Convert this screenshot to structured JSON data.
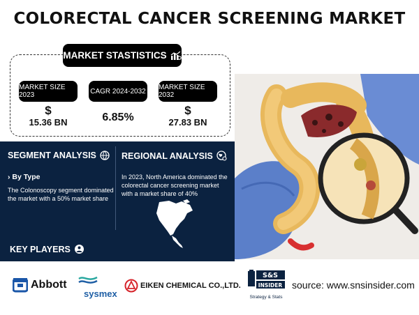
{
  "title": "COLORECTAL CANCER SCREENING MARKET",
  "market_stats": {
    "header": "MARKET STASTISTICS",
    "items": [
      {
        "label": "MARKET SIZE 2023",
        "symbol": "$",
        "value": "15.36 BN"
      },
      {
        "label": "CAGR 2024-2032",
        "symbol": "",
        "value": "6.85%"
      },
      {
        "label": "MARKET SIZE 2032",
        "symbol": "$",
        "value": "27.83 BN"
      }
    ]
  },
  "segment_analysis": {
    "heading": "SEGMENT ANALYSIS",
    "subheading": "› By Type",
    "text_line1": "The Colonoscopy segment dominated",
    "text_line2": "the market with a 50% market share"
  },
  "regional_analysis": {
    "heading": "REGIONAL ANALYSIS",
    "text_line1": "In 2023, North America dominated the",
    "text_line2": "colorectal cancer screening market",
    "text_line3": "with a market share of 40%"
  },
  "key_players": {
    "heading": "KEY PLAYERS",
    "players": [
      "Abbott",
      "sysmex",
      "EIKEN CHEMICAL CO.,LTD."
    ]
  },
  "brand": {
    "top": "S&S",
    "middle": "INSIDER",
    "bottom": "Strategy & Stats"
  },
  "source": "source: www.snsinsider.com",
  "colors": {
    "navy": "#0b2240",
    "black": "#000000",
    "abbott_blue": "#1a56a8",
    "sysmex_blue": "#1f5fa5",
    "eiken_red": "#d6232a"
  },
  "icons": [
    "chart-settings-icon",
    "gear-globe-icon",
    "globe-gear-icon",
    "person-dollar-icon",
    "north-america-map"
  ]
}
